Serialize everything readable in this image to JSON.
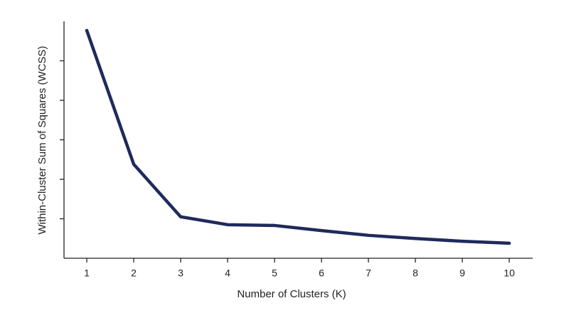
{
  "chart_data": {
    "type": "line",
    "x_label": "Number of Clusters (K)",
    "y_label": "Within-Cluster Sum of Squares (WCSS)",
    "x": [
      1,
      2,
      3,
      4,
      5,
      6,
      7,
      8,
      9,
      10
    ],
    "series": [
      {
        "color": "#1f2a5c",
        "values": [
          5.77,
          2.38,
          1.05,
          0.85,
          0.83,
          0.7,
          0.58,
          0.5,
          0.43,
          0.38
        ]
      }
    ],
    "xlim": [
      0.5,
      10.5
    ],
    "xticks": [
      1,
      2,
      3,
      4,
      5,
      6,
      7,
      8,
      9,
      10
    ],
    "ylim": [
      0,
      6
    ],
    "yticks": [
      1,
      2,
      3,
      4,
      5
    ]
  }
}
